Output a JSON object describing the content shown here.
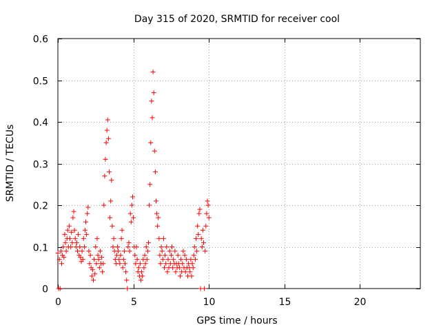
{
  "chart_data": {
    "type": "scatter",
    "title": "Day 315 of 2020, SRMTID for receiver cool",
    "xlabel": "GPS time / hours",
    "ylabel": "SRMTID / TECUs",
    "xlim": [
      0,
      24
    ],
    "ylim": [
      0,
      0.6
    ],
    "xticks": [
      0,
      5,
      10,
      15,
      20
    ],
    "xtick_labels": [
      "0",
      "5",
      "10",
      "15",
      "20"
    ],
    "yticks": [
      0,
      0.1,
      0.2,
      0.3,
      0.4,
      0.5,
      0.6
    ],
    "ytick_labels": [
      "0",
      "0.1",
      "0.2",
      "0.3",
      "0.4",
      "0.5",
      "0.6"
    ],
    "grid": true,
    "marker": "+",
    "color": "#ff0000",
    "series": [
      {
        "name": "SRMTID",
        "points": [
          [
            0.0,
            0.085
          ],
          [
            0.05,
            0.0
          ],
          [
            0.1,
            0.07
          ],
          [
            0.15,
            0.0
          ],
          [
            0.2,
            0.09
          ],
          [
            0.25,
            0.06
          ],
          [
            0.3,
            0.08
          ],
          [
            0.35,
            0.1
          ],
          [
            0.4,
            0.075
          ],
          [
            0.45,
            0.13
          ],
          [
            0.5,
            0.11
          ],
          [
            0.55,
            0.09
          ],
          [
            0.6,
            0.12
          ],
          [
            0.65,
            0.14
          ],
          [
            0.7,
            0.1
          ],
          [
            0.75,
            0.15
          ],
          [
            0.8,
            0.12
          ],
          [
            0.85,
            0.1
          ],
          [
            0.9,
            0.135
          ],
          [
            0.95,
            0.11
          ],
          [
            1.0,
            0.17
          ],
          [
            1.05,
            0.185
          ],
          [
            1.1,
            0.14
          ],
          [
            1.15,
            0.12
          ],
          [
            1.2,
            0.1
          ],
          [
            1.25,
            0.11
          ],
          [
            1.3,
            0.09
          ],
          [
            1.35,
            0.13
          ],
          [
            1.4,
            0.08
          ],
          [
            1.45,
            0.1
          ],
          [
            1.5,
            0.075
          ],
          [
            1.55,
            0.065
          ],
          [
            1.6,
            0.09
          ],
          [
            1.65,
            0.07
          ],
          [
            1.7,
            0.12
          ],
          [
            1.75,
            0.1
          ],
          [
            1.8,
            0.14
          ],
          [
            1.85,
            0.16
          ],
          [
            1.9,
            0.13
          ],
          [
            1.95,
            0.18
          ],
          [
            2.0,
            0.195
          ],
          [
            2.05,
            0.09
          ],
          [
            2.1,
            0.06
          ],
          [
            2.15,
            0.08
          ],
          [
            2.2,
            0.05
          ],
          [
            2.25,
            0.03
          ],
          [
            2.3,
            0.045
          ],
          [
            2.35,
            0.02
          ],
          [
            2.4,
            0.07
          ],
          [
            2.45,
            0.035
          ],
          [
            2.5,
            0.1
          ],
          [
            2.55,
            0.06
          ],
          [
            2.6,
            0.12
          ],
          [
            2.65,
            0.08
          ],
          [
            2.7,
            0.07
          ],
          [
            2.75,
            0.05
          ],
          [
            2.8,
            0.09
          ],
          [
            2.85,
            0.06
          ],
          [
            2.9,
            0.075
          ],
          [
            2.95,
            0.04
          ],
          [
            3.0,
            0.06
          ],
          [
            3.05,
            0.2
          ],
          [
            3.1,
            0.27
          ],
          [
            3.15,
            0.31
          ],
          [
            3.2,
            0.35
          ],
          [
            3.25,
            0.38
          ],
          [
            3.3,
            0.405
          ],
          [
            3.35,
            0.36
          ],
          [
            3.4,
            0.28
          ],
          [
            3.45,
            0.17
          ],
          [
            3.5,
            0.21
          ],
          [
            3.55,
            0.26
          ],
          [
            3.6,
            0.15
          ],
          [
            3.65,
            0.1
          ],
          [
            3.7,
            0.12
          ],
          [
            3.75,
            0.09
          ],
          [
            3.8,
            0.07
          ],
          [
            3.85,
            0.06
          ],
          [
            3.9,
            0.08
          ],
          [
            3.95,
            0.1
          ],
          [
            4.0,
            0.09
          ],
          [
            4.05,
            0.07
          ],
          [
            4.1,
            0.06
          ],
          [
            4.15,
            0.08
          ],
          [
            4.2,
            0.12
          ],
          [
            4.25,
            0.14
          ],
          [
            4.3,
            0.05
          ],
          [
            4.35,
            0.07
          ],
          [
            4.4,
            0.09
          ],
          [
            4.45,
            0.06
          ],
          [
            4.5,
            0.04
          ],
          [
            4.55,
            0.02
          ],
          [
            4.6,
            0.0
          ],
          [
            4.65,
            0.1
          ],
          [
            4.7,
            0.11
          ],
          [
            4.75,
            0.09
          ],
          [
            4.8,
            0.18
          ],
          [
            4.85,
            0.16
          ],
          [
            4.9,
            0.2
          ],
          [
            4.95,
            0.22
          ],
          [
            5.0,
            0.17
          ],
          [
            5.05,
            0.1
          ],
          [
            5.1,
            0.08
          ],
          [
            5.15,
            0.06
          ],
          [
            5.2,
            0.1
          ],
          [
            5.25,
            0.07
          ],
          [
            5.3,
            0.04
          ],
          [
            5.35,
            0.05
          ],
          [
            5.4,
            0.03
          ],
          [
            5.45,
            0.06
          ],
          [
            5.5,
            0.02
          ],
          [
            5.55,
            0.04
          ],
          [
            5.6,
            0.03
          ],
          [
            5.65,
            0.07
          ],
          [
            5.7,
            0.05
          ],
          [
            5.75,
            0.08
          ],
          [
            5.8,
            0.06
          ],
          [
            5.85,
            0.1
          ],
          [
            5.9,
            0.07
          ],
          [
            5.95,
            0.09
          ],
          [
            6.0,
            0.11
          ],
          [
            6.05,
            0.2
          ],
          [
            6.1,
            0.25
          ],
          [
            6.15,
            0.35
          ],
          [
            6.2,
            0.45
          ],
          [
            6.25,
            0.41
          ],
          [
            6.3,
            0.52
          ],
          [
            6.35,
            0.47
          ],
          [
            6.4,
            0.33
          ],
          [
            6.45,
            0.28
          ],
          [
            6.5,
            0.21
          ],
          [
            6.55,
            0.18
          ],
          [
            6.6,
            0.15
          ],
          [
            6.65,
            0.17
          ],
          [
            6.7,
            0.12
          ],
          [
            6.75,
            0.08
          ],
          [
            6.8,
            0.06
          ],
          [
            6.85,
            0.1
          ],
          [
            6.9,
            0.09
          ],
          [
            6.95,
            0.07
          ],
          [
            7.0,
            0.12
          ],
          [
            7.05,
            0.05
          ],
          [
            7.1,
            0.08
          ],
          [
            7.15,
            0.06
          ],
          [
            7.2,
            0.1
          ],
          [
            7.25,
            0.04
          ],
          [
            7.3,
            0.07
          ],
          [
            7.35,
            0.05
          ],
          [
            7.4,
            0.09
          ],
          [
            7.45,
            0.06
          ],
          [
            7.5,
            0.08
          ],
          [
            7.55,
            0.1
          ],
          [
            7.6,
            0.05
          ],
          [
            7.65,
            0.07
          ],
          [
            7.7,
            0.06
          ],
          [
            7.75,
            0.09
          ],
          [
            7.8,
            0.04
          ],
          [
            7.85,
            0.06
          ],
          [
            7.9,
            0.05
          ],
          [
            7.95,
            0.08
          ],
          [
            8.0,
            0.06
          ],
          [
            8.05,
            0.05
          ],
          [
            8.1,
            0.03
          ],
          [
            8.15,
            0.07
          ],
          [
            8.2,
            0.04
          ],
          [
            8.25,
            0.06
          ],
          [
            8.3,
            0.09
          ],
          [
            8.35,
            0.05
          ],
          [
            8.4,
            0.08
          ],
          [
            8.45,
            0.04
          ],
          [
            8.5,
            0.07
          ],
          [
            8.55,
            0.05
          ],
          [
            8.6,
            0.03
          ],
          [
            8.65,
            0.06
          ],
          [
            8.7,
            0.05
          ],
          [
            8.75,
            0.04
          ],
          [
            8.8,
            0.07
          ],
          [
            8.85,
            0.03
          ],
          [
            8.9,
            0.06
          ],
          [
            8.95,
            0.05
          ],
          [
            9.0,
            0.08
          ],
          [
            9.05,
            0.1
          ],
          [
            9.1,
            0.07
          ],
          [
            9.15,
            0.12
          ],
          [
            9.2,
            0.09
          ],
          [
            9.25,
            0.15
          ],
          [
            9.3,
            0.13
          ],
          [
            9.35,
            0.18
          ],
          [
            9.4,
            0.19
          ],
          [
            9.45,
            0.0
          ],
          [
            9.5,
            0.12
          ],
          [
            9.55,
            0.1
          ],
          [
            9.6,
            0.14
          ],
          [
            9.65,
            0.11
          ],
          [
            9.7,
            0.0
          ],
          [
            9.75,
            0.09
          ],
          [
            9.8,
            0.15
          ],
          [
            9.85,
            0.18
          ],
          [
            9.9,
            0.21
          ],
          [
            9.95,
            0.2
          ],
          [
            10.0,
            0.17
          ]
        ]
      }
    ]
  }
}
